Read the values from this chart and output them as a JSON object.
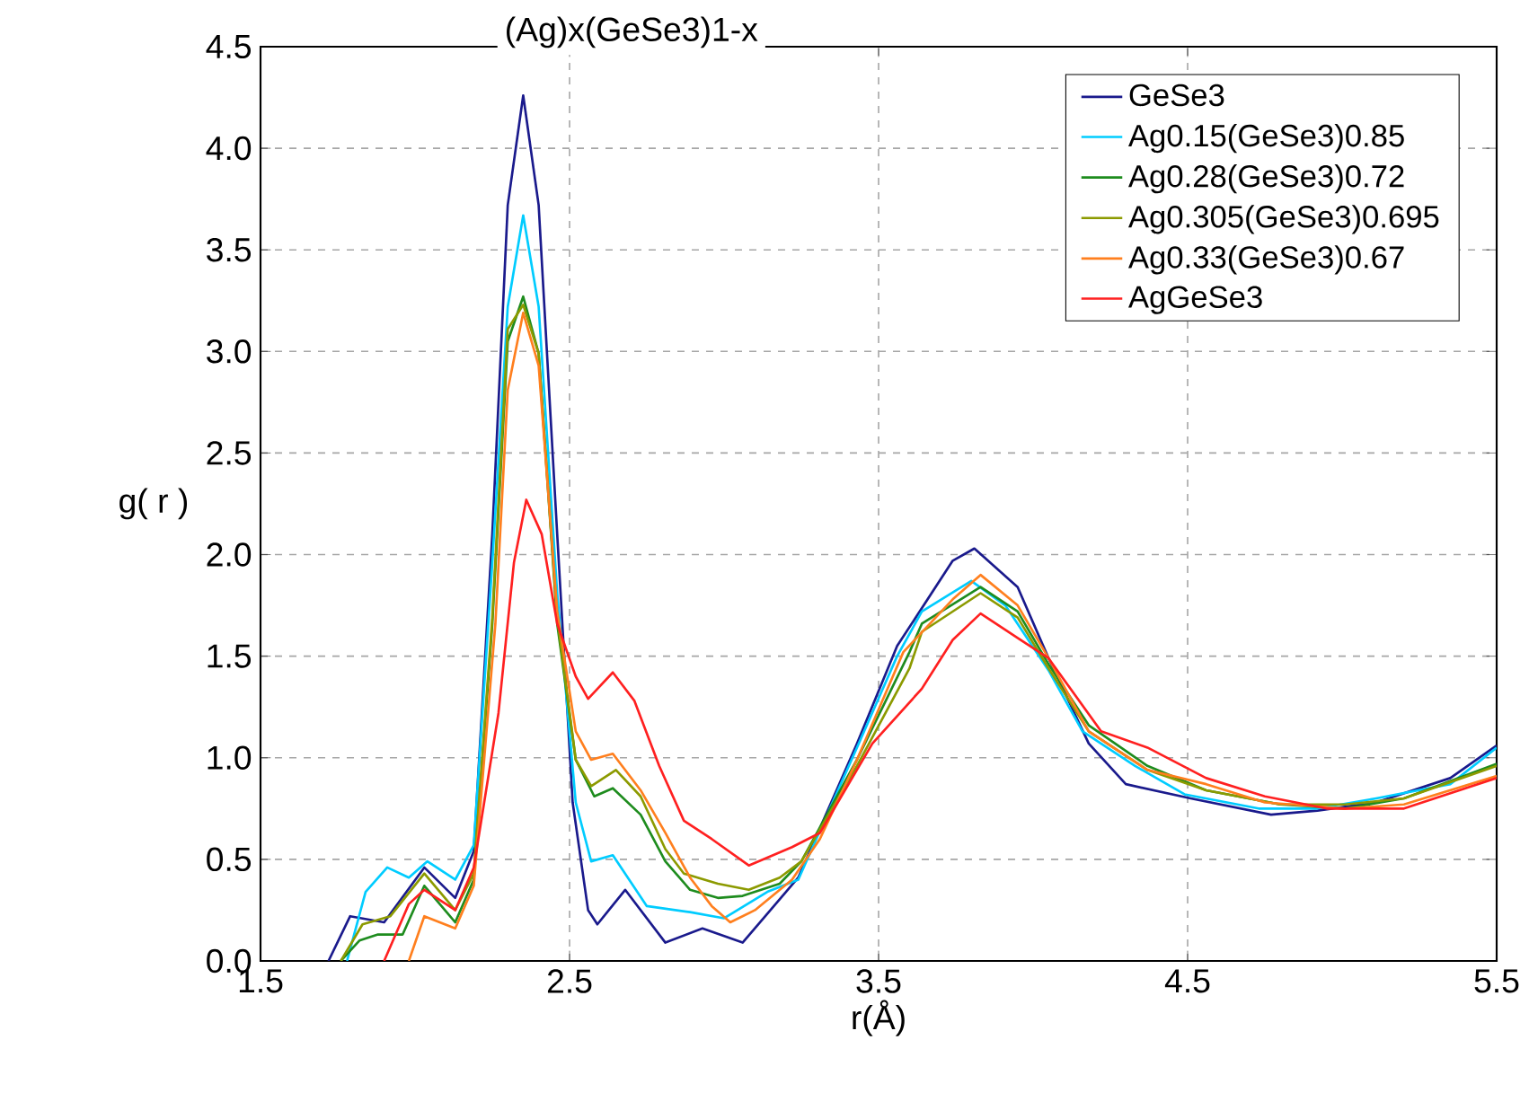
{
  "chart_data": {
    "type": "line",
    "title": "(Ag)x(GeSe3)1-x",
    "xlabel": "r(Å)",
    "ylabel": "g( r )",
    "xlim": [
      1.5,
      5.5
    ],
    "xticks": [
      1.5,
      2.5,
      3.5,
      4.5,
      5.5
    ],
    "ylim": [
      0,
      4.5
    ],
    "yticks": [
      {
        "value": 0,
        "label": "0.0"
      },
      0.5,
      {
        "value": 1,
        "label": "1.0"
      },
      1.5,
      {
        "value": 2,
        "label": "2.0"
      },
      2.5,
      {
        "value": 3,
        "label": "3.0"
      },
      3.5,
      {
        "value": 4,
        "label": "4.0"
      },
      4.5
    ],
    "grid": true,
    "legend": "top right",
    "line_style": "solid",
    "series": [
      {
        "name": "GeSe3",
        "color": "#1a1a8c",
        "x": [
          1.72,
          1.79,
          1.9,
          2.03,
          2.13,
          2.19,
          2.25,
          2.3,
          2.35,
          2.4,
          2.46,
          2.51,
          2.56,
          2.59,
          2.68,
          2.81,
          2.93,
          3.06,
          3.24,
          3.43,
          3.56,
          3.74,
          3.81,
          3.95,
          4.05,
          4.18,
          4.3,
          4.51,
          4.77,
          4.92,
          5.11,
          5.35,
          5.5
        ],
        "values": [
          0,
          0.22,
          0.19,
          0.46,
          0.31,
          0.54,
          2.1,
          3.72,
          4.26,
          3.72,
          2.1,
          0.78,
          0.25,
          0.18,
          0.35,
          0.09,
          0.16,
          0.09,
          0.41,
          1.07,
          1.55,
          1.97,
          2.03,
          1.84,
          1.49,
          1.07,
          0.87,
          0.8,
          0.72,
          0.74,
          0.78,
          0.9,
          1.06
        ]
      },
      {
        "name": "Ag0.15(GeSe3)0.85",
        "color": "#00ccff",
        "x": [
          1.78,
          1.84,
          1.91,
          1.98,
          2.04,
          2.13,
          2.19,
          2.25,
          2.3,
          2.35,
          2.4,
          2.46,
          2.52,
          2.57,
          2.64,
          2.75,
          2.89,
          3.0,
          3.14,
          3.24,
          3.43,
          3.56,
          3.64,
          3.8,
          3.91,
          4.05,
          4.16,
          4.33,
          4.49,
          4.73,
          4.92,
          5.11,
          5.35,
          5.5
        ],
        "values": [
          0,
          0.34,
          0.46,
          0.41,
          0.49,
          0.4,
          0.57,
          1.96,
          3.22,
          3.67,
          3.22,
          1.81,
          0.78,
          0.49,
          0.52,
          0.27,
          0.24,
          0.21,
          0.34,
          0.4,
          1.05,
          1.5,
          1.72,
          1.87,
          1.75,
          1.43,
          1.13,
          0.96,
          0.82,
          0.75,
          0.75,
          0.8,
          0.87,
          1.05
        ]
      },
      {
        "name": "Ag0.28(GeSe3)0.72",
        "color": "#1e8c1e",
        "x": [
          1.76,
          1.82,
          1.88,
          1.96,
          2.03,
          2.13,
          2.19,
          2.25,
          2.3,
          2.35,
          2.4,
          2.46,
          2.52,
          2.58,
          2.64,
          2.73,
          2.81,
          2.89,
          2.98,
          3.06,
          3.18,
          3.25,
          3.43,
          3.6,
          3.64,
          3.83,
          3.95,
          4.05,
          4.18,
          4.37,
          4.56,
          4.8,
          5.01,
          5.2,
          5.5
        ],
        "values": [
          0,
          0.1,
          0.13,
          0.13,
          0.37,
          0.19,
          0.4,
          1.66,
          3.05,
          3.27,
          2.99,
          1.66,
          0.99,
          0.81,
          0.85,
          0.72,
          0.49,
          0.35,
          0.31,
          0.32,
          0.38,
          0.49,
          0.99,
          1.52,
          1.66,
          1.84,
          1.72,
          1.46,
          1.16,
          0.96,
          0.84,
          0.77,
          0.75,
          0.8,
          0.97
        ]
      },
      {
        "name": "Ag0.305(GeSe3)0.695",
        "color": "#8c9a00",
        "x": [
          1.76,
          1.83,
          1.92,
          2.03,
          2.13,
          2.19,
          2.25,
          2.3,
          2.35,
          2.4,
          2.46,
          2.52,
          2.57,
          2.65,
          2.73,
          2.81,
          2.87,
          2.98,
          3.08,
          3.18,
          3.25,
          3.43,
          3.6,
          3.64,
          3.83,
          3.95,
          4.05,
          4.18,
          4.37,
          4.56,
          4.8,
          5.01,
          5.2,
          5.5
        ],
        "values": [
          0,
          0.18,
          0.22,
          0.43,
          0.25,
          0.43,
          1.69,
          3.11,
          3.23,
          2.99,
          1.69,
          0.99,
          0.86,
          0.94,
          0.81,
          0.55,
          0.43,
          0.38,
          0.35,
          0.41,
          0.49,
          0.96,
          1.44,
          1.62,
          1.81,
          1.69,
          1.44,
          1.13,
          0.94,
          0.84,
          0.77,
          0.77,
          0.8,
          0.96
        ]
      },
      {
        "name": "Ag0.33(GeSe3)0.67",
        "color": "#ff7f1e",
        "x": [
          1.98,
          2.03,
          2.13,
          2.19,
          2.26,
          2.3,
          2.35,
          2.4,
          2.46,
          2.52,
          2.57,
          2.64,
          2.73,
          2.81,
          2.89,
          2.96,
          3.02,
          3.1,
          3.22,
          3.31,
          3.43,
          3.58,
          3.74,
          3.83,
          3.95,
          4.05,
          4.18,
          4.37,
          4.56,
          4.75,
          5.01,
          5.2,
          5.5
        ],
        "values": [
          0,
          0.22,
          0.16,
          0.37,
          1.66,
          2.81,
          3.19,
          2.93,
          1.72,
          1.13,
          0.99,
          1.02,
          0.84,
          0.63,
          0.41,
          0.27,
          0.19,
          0.25,
          0.4,
          0.6,
          0.99,
          1.52,
          1.78,
          1.9,
          1.75,
          1.49,
          1.13,
          0.94,
          0.87,
          0.78,
          0.75,
          0.77,
          0.91
        ]
      },
      {
        "name": "AgGeSe3",
        "color": "#ff2020",
        "x": [
          1.9,
          1.98,
          2.03,
          2.13,
          2.19,
          2.27,
          2.32,
          2.36,
          2.41,
          2.46,
          2.52,
          2.56,
          2.64,
          2.71,
          2.79,
          2.87,
          2.96,
          3.08,
          3.22,
          3.31,
          3.48,
          3.64,
          3.74,
          3.83,
          3.95,
          4.05,
          4.22,
          4.37,
          4.56,
          4.75,
          4.95,
          5.2,
          5.5
        ],
        "values": [
          0,
          0.28,
          0.35,
          0.25,
          0.46,
          1.22,
          1.96,
          2.27,
          2.1,
          1.66,
          1.4,
          1.29,
          1.42,
          1.28,
          0.96,
          0.69,
          0.6,
          0.47,
          0.56,
          0.63,
          1.07,
          1.34,
          1.58,
          1.71,
          1.59,
          1.49,
          1.13,
          1.05,
          0.9,
          0.81,
          0.75,
          0.75,
          0.9
        ]
      }
    ]
  }
}
